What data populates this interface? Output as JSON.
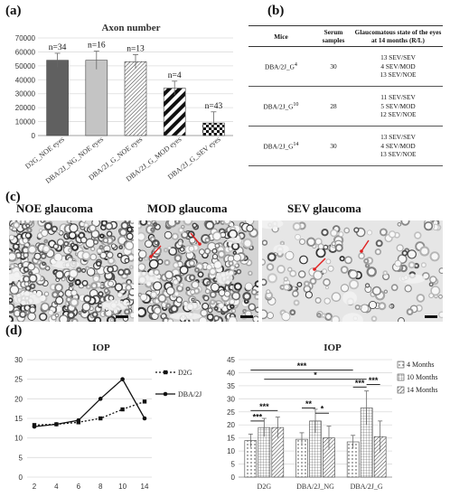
{
  "labels": {
    "a": "(a)",
    "b": "(b)",
    "c": "(c)",
    "d": "(d)"
  },
  "panel_a": {
    "chart_data": {
      "type": "bar",
      "title": "Axon number",
      "categories": [
        "D2G_NOE eyes",
        "DBA/2J_NG_NOE eyes",
        "DBA/2J_G_NOE eyes",
        "DBA/2J_G_MOD eyes",
        "DBA/2J_G_SEV eyes"
      ],
      "values": [
        54000,
        54000,
        53000,
        34000,
        9000
      ],
      "errors": [
        5000,
        6500,
        5000,
        5000,
        8000
      ],
      "annotations": [
        "n=34",
        "n=16",
        "n=13",
        "n=4",
        "n=43"
      ],
      "fills": [
        "dark-gray",
        "light-gray",
        "diagonal-hatch",
        "bold-diagonal-stripes",
        "checkerboard"
      ],
      "ylim": [
        0,
        70000
      ],
      "yticks": [
        "0",
        "10000",
        "20000",
        "30000",
        "40000",
        "50000",
        "60000",
        "70000"
      ],
      "grid": true
    }
  },
  "panel_b": {
    "headers": [
      "Mice",
      "Serum samples",
      "Glaucomatous state of the eyes at 14 months (R/L)"
    ],
    "rows": [
      {
        "mice": "DBA/2J_G",
        "sup": "4",
        "samples": "30",
        "states": [
          "13 SEV/SEV",
          "4 SEV/MOD",
          "13 SEV/NOE"
        ]
      },
      {
        "mice": "DBA/2J_G",
        "sup": "10",
        "samples": "28",
        "states": [
          "11 SEV/SEV",
          "5 SEV/MOD",
          "12 SEV/NOE"
        ]
      },
      {
        "mice": "DBA/2J_G",
        "sup": "14",
        "samples": "30",
        "states": [
          "13 SEV/SEV",
          "4 SEV/MOD",
          "13 SEV/NOE"
        ]
      }
    ]
  },
  "panel_c": {
    "titles": [
      "NOE glaucoma",
      "MOD glaucoma",
      "SEV glaucoma"
    ]
  },
  "panel_d_line": {
    "chart_data": {
      "type": "line",
      "title": "IOP",
      "x": [
        2,
        4,
        6,
        8,
        10,
        14
      ],
      "xticks": [
        "2",
        "4",
        "6",
        "8",
        "10",
        "14"
      ],
      "ylim": [
        0,
        30
      ],
      "yticks": [
        "0",
        "5",
        "10",
        "15",
        "20",
        "25",
        "30"
      ],
      "series": [
        {
          "name": "D2G",
          "style": "dotted",
          "marker": "square",
          "values": [
            13.3,
            13.5,
            14.0,
            15.0,
            17.3,
            19.3
          ]
        },
        {
          "name": "DBA/2J",
          "style": "solid",
          "marker": "circle",
          "values": [
            12.9,
            13.5,
            14.5,
            20.0,
            25.0,
            15.0
          ]
        }
      ],
      "grid": true,
      "legend": "right"
    }
  },
  "panel_d_bar": {
    "chart_data": {
      "type": "bar",
      "title": "IOP",
      "categories": [
        "D2G",
        "DBA/2J_NG",
        "DBA/2J_G"
      ],
      "series": [
        {
          "name": "4 Months",
          "fill": "dots",
          "values": [
            14,
            14.5,
            13.5
          ],
          "errors": [
            2.5,
            2.5,
            2.5
          ]
        },
        {
          "name": "10 Months",
          "fill": "grid",
          "values": [
            19,
            21.5,
            26.5
          ],
          "errors": [
            3.5,
            4.5,
            6.5
          ]
        },
        {
          "name": "14 Months",
          "fill": "diagonal-hatch",
          "values": [
            19,
            15,
            15.5
          ],
          "errors": [
            4,
            4.5,
            6
          ]
        }
      ],
      "ylim": [
        0,
        45
      ],
      "yticks": [
        "0",
        "5",
        "10",
        "15",
        "20",
        "25",
        "30",
        "35",
        "40",
        "45"
      ],
      "significance": [
        {
          "from": 0,
          "to": 1,
          "group": 0,
          "label": "***"
        },
        {
          "from": 0,
          "to": 2,
          "group": 0,
          "label": "***"
        },
        {
          "from": 0,
          "to": 1,
          "group": 1,
          "label": "**"
        },
        {
          "from": 1,
          "to": 2,
          "group": 1,
          "label": "*"
        },
        {
          "from": 0,
          "to": 1,
          "group": 2,
          "label": "***"
        },
        {
          "from": 1,
          "to": 2,
          "group": 2,
          "label": "***"
        },
        {
          "from": "g0s1",
          "to": "g2s1",
          "label": "*"
        },
        {
          "from": "g0s0",
          "to": "g2s0",
          "label": "***"
        }
      ],
      "grid": true,
      "legend": "right"
    }
  }
}
